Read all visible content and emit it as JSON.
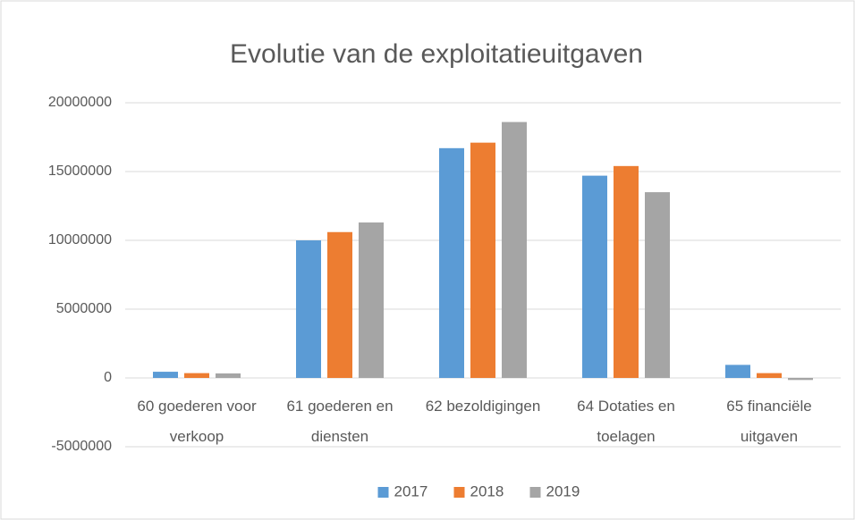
{
  "chart_data": {
    "type": "bar",
    "title": "Evolutie van de exploitatieuitgaven",
    "categories": [
      "60 goederen voor verkoop",
      "61 goederen en diensten",
      "62 bezoldigingen",
      "64 Dotaties en toelagen",
      "65 financiële uitgaven"
    ],
    "series": [
      {
        "name": "2017",
        "color": "#5b9bd5",
        "values": [
          450000,
          10000000,
          16700000,
          14700000,
          950000
        ]
      },
      {
        "name": "2018",
        "color": "#ed7d31",
        "values": [
          350000,
          10600000,
          17100000,
          15400000,
          350000
        ]
      },
      {
        "name": "2019",
        "color": "#a5a5a5",
        "values": [
          330000,
          11300000,
          18600000,
          13500000,
          -150000
        ]
      }
    ],
    "ylim": [
      -5000000,
      20000000
    ],
    "yticks": [
      -5000000,
      0,
      5000000,
      10000000,
      15000000,
      20000000
    ],
    "grid": true,
    "legend": "bottom"
  }
}
